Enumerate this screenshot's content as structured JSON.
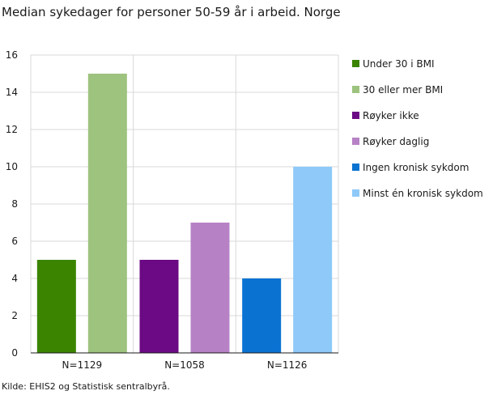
{
  "title": "Median sykedager for personer 50-59 år i arbeid. Norge",
  "source": "Kilde: EHIS2 og Statistisk sentralbyrå.",
  "chart_data": {
    "type": "bar",
    "categories": [
      "N=1129",
      "N=1058",
      "N=1126"
    ],
    "series": [
      {
        "name": "Under 30 i BMI",
        "category": "N=1129",
        "value": 5,
        "color": "#3a8400"
      },
      {
        "name": "30 eller mer BMI",
        "category": "N=1129",
        "value": 15,
        "color": "#9dc37f"
      },
      {
        "name": "Røyker ikke",
        "category": "N=1058",
        "value": 5,
        "color": "#6b0a84"
      },
      {
        "name": "Røyker daglig",
        "category": "N=1058",
        "value": 7,
        "color": "#b682c5"
      },
      {
        "name": "Ingen kronisk sykdom",
        "category": "N=1126",
        "value": 4,
        "color": "#0a73d2"
      },
      {
        "name": "Minst én kronisk sykdom",
        "category": "N=1126",
        "value": 10,
        "color": "#8ec9f9"
      }
    ],
    "ylim": [
      0,
      16
    ],
    "yticks": [
      0,
      2,
      4,
      6,
      8,
      10,
      12,
      14,
      16
    ],
    "grid": true,
    "legend": "right"
  }
}
